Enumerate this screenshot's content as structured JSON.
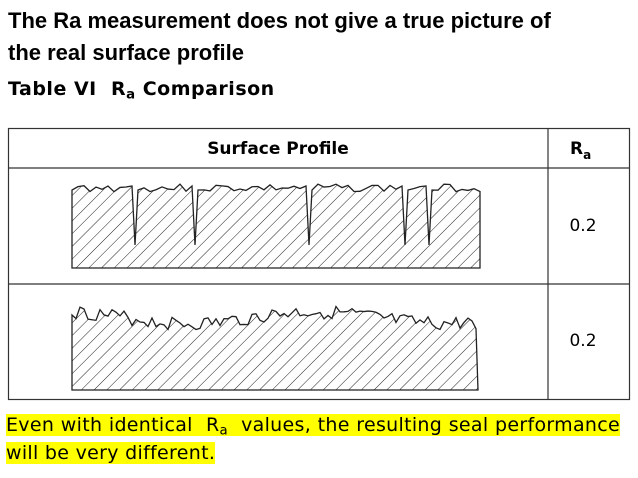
{
  "header": {
    "title_lines": [
      "The Ra measurement does not give a true picture of",
      "the real surface profile"
    ]
  },
  "caption": {
    "label": "Table VI",
    "symbol": "R",
    "subscript": "a",
    "text": "Comparison"
  },
  "table": {
    "header": {
      "profile": "Surface Profile",
      "symbol": "R",
      "subscript": "a"
    },
    "rows": [
      {
        "ra": "0.2"
      },
      {
        "ra": "0.2"
      }
    ]
  },
  "footer": {
    "before": "Even with identical",
    "symbol": "R",
    "subscript": "a",
    "after": "values, the resulting seal performance will be very different."
  }
}
